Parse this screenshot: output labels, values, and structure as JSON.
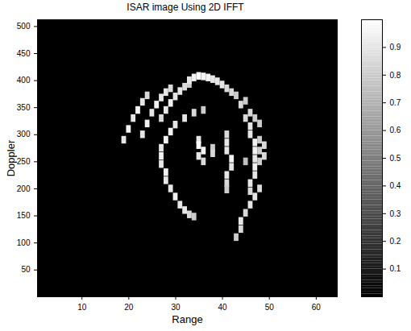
{
  "chart_data": {
    "type": "heatmap",
    "title": "ISAR image Using 2D IFFT",
    "x_label": "Range",
    "y_label": "Doppler",
    "xlim": [
      0.5,
      64.5
    ],
    "ylim": [
      0.5,
      512.5
    ],
    "xticks": [
      10,
      20,
      30,
      40,
      50,
      60
    ],
    "yticks": [
      50,
      100,
      150,
      200,
      250,
      300,
      350,
      400,
      450,
      500
    ],
    "cells": [
      [
        19,
        290,
        0.9
      ],
      [
        20,
        310,
        0.95
      ],
      [
        21,
        330,
        0.9
      ],
      [
        22,
        345,
        0.95
      ],
      [
        23,
        360,
        0.9
      ],
      [
        24,
        372,
        0.85
      ],
      [
        23,
        300,
        0.9
      ],
      [
        24,
        320,
        0.95
      ],
      [
        25,
        340,
        0.9
      ],
      [
        26,
        355,
        0.95
      ],
      [
        27,
        368,
        0.9
      ],
      [
        28,
        378,
        0.9
      ],
      [
        29,
        385,
        0.85
      ],
      [
        27,
        330,
        0.85
      ],
      [
        28,
        345,
        0.9
      ],
      [
        29,
        358,
        0.95
      ],
      [
        30,
        370,
        0.9
      ],
      [
        31,
        380,
        0.9
      ],
      [
        32,
        388,
        0.85
      ],
      [
        33,
        393,
        0.8
      ],
      [
        33,
        400,
        0.9
      ],
      [
        34,
        405,
        0.95
      ],
      [
        35,
        408,
        1.0
      ],
      [
        36,
        407,
        0.95
      ],
      [
        37,
        405,
        0.95
      ],
      [
        38,
        402,
        0.9
      ],
      [
        39,
        398,
        0.9
      ],
      [
        40,
        392,
        0.9
      ],
      [
        41,
        385,
        0.85
      ],
      [
        42,
        378,
        0.85
      ],
      [
        43,
        372,
        0.8
      ],
      [
        36,
        345,
        0.8
      ],
      [
        34,
        340,
        0.85
      ],
      [
        32,
        330,
        0.9
      ],
      [
        30,
        318,
        0.9
      ],
      [
        29,
        305,
        0.95
      ],
      [
        28,
        290,
        0.95
      ],
      [
        27,
        275,
        0.9
      ],
      [
        27,
        260,
        0.95
      ],
      [
        27,
        245,
        0.9
      ],
      [
        28,
        230,
        0.95
      ],
      [
        28,
        215,
        0.9
      ],
      [
        29,
        200,
        0.9
      ],
      [
        30,
        185,
        0.95
      ],
      [
        31,
        170,
        0.9
      ],
      [
        32,
        160,
        0.9
      ],
      [
        33,
        152,
        0.85
      ],
      [
        34,
        148,
        0.8
      ],
      [
        35,
        290,
        0.9
      ],
      [
        35,
        280,
        1.0
      ],
      [
        36,
        270,
        0.95
      ],
      [
        35,
        260,
        0.9
      ],
      [
        36,
        250,
        0.85
      ],
      [
        38,
        275,
        0.8
      ],
      [
        38,
        265,
        0.85
      ],
      [
        41,
        300,
        0.85
      ],
      [
        41,
        285,
        0.9
      ],
      [
        41,
        270,
        0.9
      ],
      [
        42,
        255,
        0.95
      ],
      [
        42,
        240,
        0.9
      ],
      [
        41,
        225,
        0.9
      ],
      [
        41,
        210,
        0.85
      ],
      [
        41,
        198,
        0.8
      ],
      [
        45,
        330,
        0.85
      ],
      [
        46,
        315,
        0.9
      ],
      [
        46,
        300,
        0.9
      ],
      [
        47,
        285,
        0.95
      ],
      [
        47,
        270,
        0.95
      ],
      [
        47,
        255,
        0.9
      ],
      [
        47,
        240,
        0.95
      ],
      [
        47,
        225,
        0.9
      ],
      [
        46,
        210,
        0.9
      ],
      [
        46,
        195,
        0.85
      ],
      [
        48,
        200,
        0.85
      ],
      [
        47,
        185,
        0.9
      ],
      [
        46,
        170,
        0.9
      ],
      [
        45,
        155,
        0.85
      ],
      [
        44,
        140,
        0.9
      ],
      [
        44,
        125,
        0.85
      ],
      [
        43,
        110,
        0.8
      ],
      [
        48,
        290,
        0.8
      ],
      [
        49,
        280,
        0.85
      ],
      [
        48,
        270,
        0.8
      ],
      [
        49,
        260,
        0.85
      ],
      [
        48,
        250,
        0.8
      ],
      [
        45,
        250,
        0.75
      ],
      [
        44,
        355,
        0.85
      ],
      [
        45,
        362,
        0.8
      ],
      [
        46,
        340,
        0.85
      ],
      [
        47,
        330,
        0.8
      ],
      [
        48,
        320,
        0.8
      ]
    ],
    "colorbar": {
      "range": [
        0,
        1
      ],
      "ticks": [
        0.1,
        0.2,
        0.3,
        0.4,
        0.5,
        0.6,
        0.7,
        0.8,
        0.9
      ]
    }
  }
}
